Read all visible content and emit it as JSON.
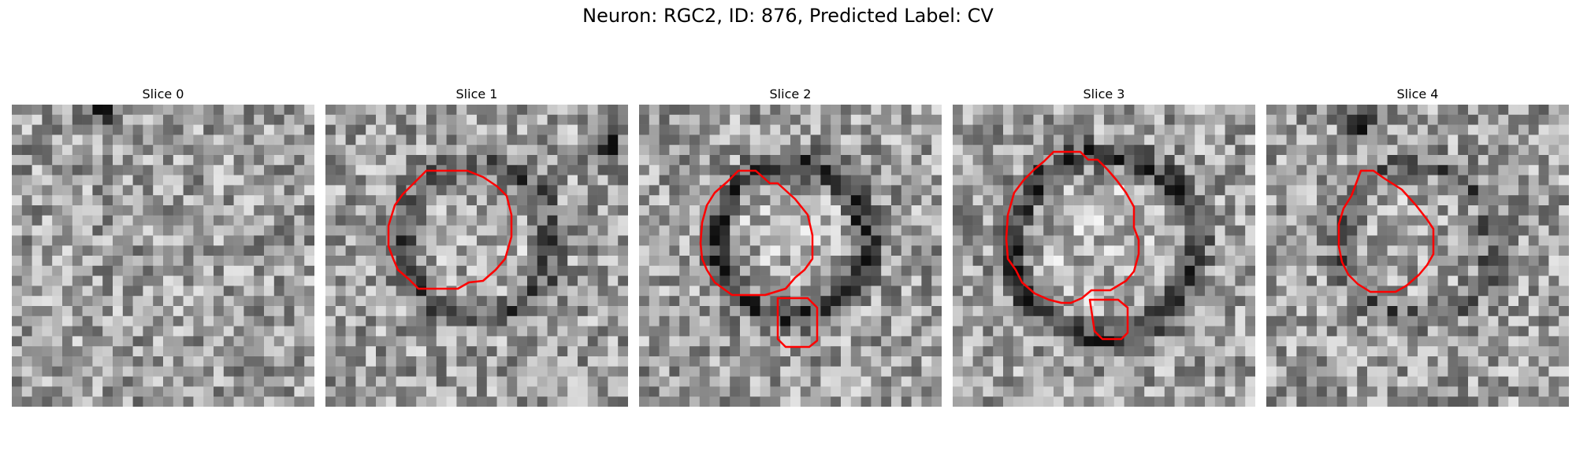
{
  "figure": {
    "title": "Neuron: RGC2, ID: 876, Predicted Label: CV"
  },
  "panels": [
    {
      "title": "Slice 0",
      "seed": 11,
      "ring": 0.0,
      "darkBlob": [
        0.3,
        0.02
      ]
    },
    {
      "title": "Slice 1",
      "seed": 23,
      "ring": 0.55,
      "darkBlob": [
        0.93,
        0.14
      ]
    },
    {
      "title": "Slice 2",
      "seed": 37,
      "ring": 0.85,
      "darkBlob": null
    },
    {
      "title": "Slice 3",
      "seed": 51,
      "ring": 0.85,
      "darkBlob": null
    },
    {
      "title": "Slice 4",
      "seed": 67,
      "ring": 0.45,
      "darkBlob": [
        0.32,
        0.06
      ]
    }
  ],
  "colors": {
    "contour": "#ff0000",
    "background": "#ffffff"
  },
  "image": {
    "type": "grayscale-grid",
    "cmap": "gray",
    "grid": 30
  }
}
